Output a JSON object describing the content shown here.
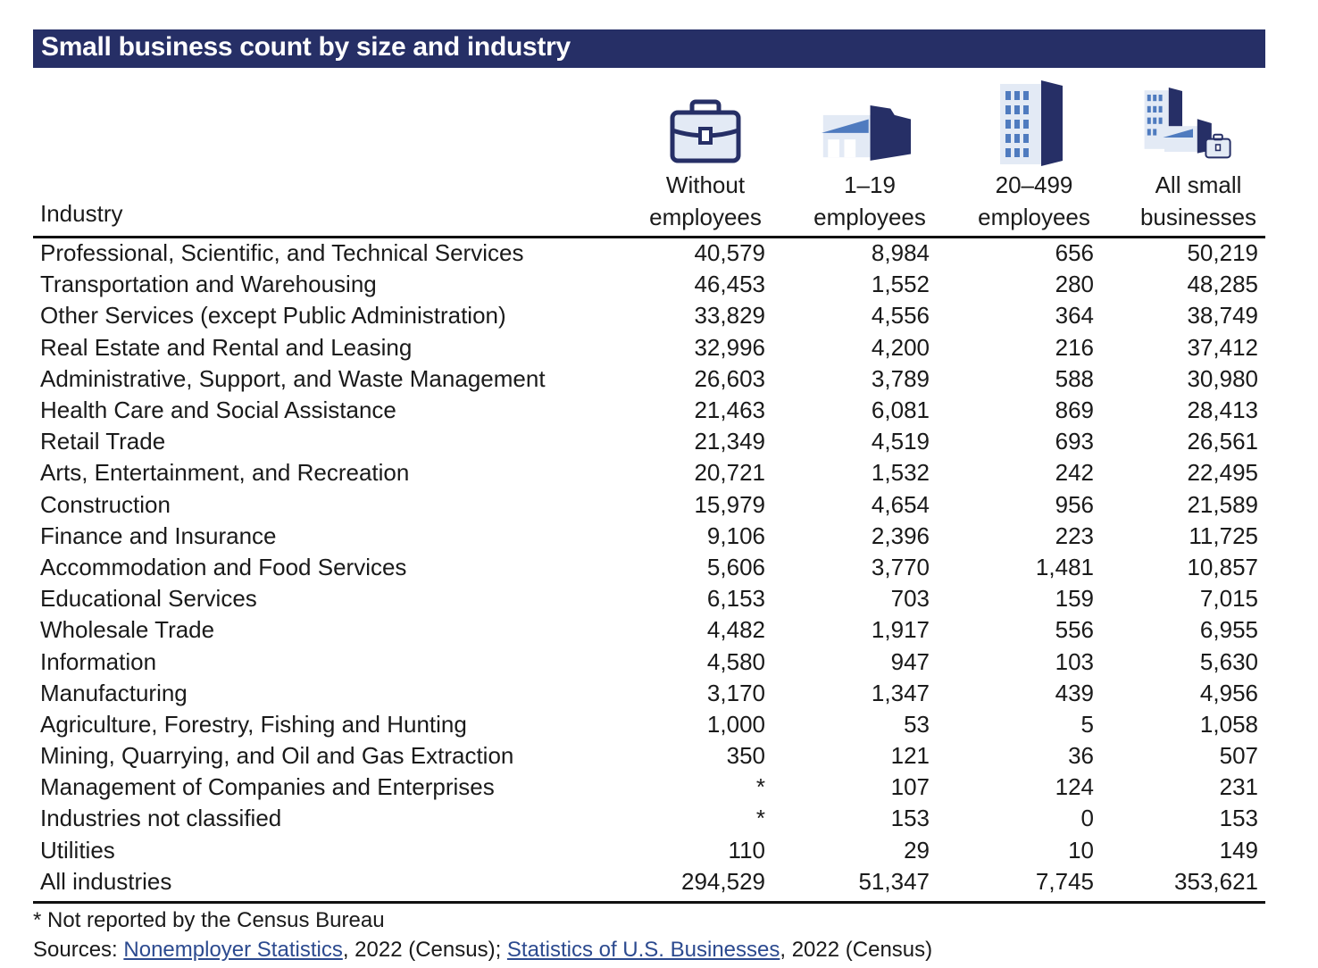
{
  "title": "Small business count by size and industry",
  "header": {
    "industry": "Industry",
    "columns": [
      {
        "line1": "Without",
        "line2": "employees",
        "icon": "briefcase-icon"
      },
      {
        "line1": "1–19",
        "line2": "employees",
        "icon": "storefront-icon"
      },
      {
        "line1": "20–499",
        "line2": "employees",
        "icon": "office-building-icon"
      },
      {
        "line1": "All small",
        "line2": "businesses",
        "icon": "buildings-group-icon"
      }
    ]
  },
  "rows": [
    [
      "Professional, Scientific, and Technical Services",
      "40,579",
      "8,984",
      "656",
      "50,219"
    ],
    [
      "Transportation and Warehousing",
      "46,453",
      "1,552",
      "280",
      "48,285"
    ],
    [
      "Other Services (except Public Administration)",
      "33,829",
      "4,556",
      "364",
      "38,749"
    ],
    [
      "Real Estate and Rental and Leasing",
      "32,996",
      "4,200",
      "216",
      "37,412"
    ],
    [
      "Administrative, Support, and Waste Management",
      "26,603",
      "3,789",
      "588",
      "30,980"
    ],
    [
      "Health Care and Social Assistance",
      "21,463",
      "6,081",
      "869",
      "28,413"
    ],
    [
      "Retail Trade",
      "21,349",
      "4,519",
      "693",
      "26,561"
    ],
    [
      "Arts, Entertainment, and Recreation",
      "20,721",
      "1,532",
      "242",
      "22,495"
    ],
    [
      "Construction",
      "15,979",
      "4,654",
      "956",
      "21,589"
    ],
    [
      "Finance and Insurance",
      "9,106",
      "2,396",
      "223",
      "11,725"
    ],
    [
      "Accommodation and Food Services",
      "5,606",
      "3,770",
      "1,481",
      "10,857"
    ],
    [
      "Educational Services",
      "6,153",
      "703",
      "159",
      "7,015"
    ],
    [
      "Wholesale Trade",
      "4,482",
      "1,917",
      "556",
      "6,955"
    ],
    [
      "Information",
      "4,580",
      "947",
      "103",
      "5,630"
    ],
    [
      "Manufacturing",
      "3,170",
      "1,347",
      "439",
      "4,956"
    ],
    [
      "Agriculture, Forestry, Fishing and Hunting",
      "1,000",
      "53",
      "5",
      "1,058"
    ],
    [
      "Mining, Quarrying, and Oil and Gas Extraction",
      "350",
      "121",
      "36",
      "507"
    ],
    [
      "Management of Companies and Enterprises",
      "*",
      "107",
      "124",
      "231"
    ],
    [
      "Industries not classified",
      "*",
      "153",
      "0",
      "153"
    ],
    [
      "Utilities",
      "110",
      "29",
      "10",
      "149"
    ],
    [
      "All industries",
      "294,529",
      "51,347",
      "7,745",
      "353,621"
    ]
  ],
  "footnote": "* Not reported by the Census Bureau",
  "sources": {
    "prefix": "Sources: ",
    "link1": "Nonemployer Statistics",
    "mid": ", 2022 (Census); ",
    "link2": "Statistics of U.S. Businesses",
    "suffix": ", 2022 (Census)"
  },
  "colors": {
    "navy": "#262f66",
    "light": "#e3eaf5",
    "mid": "#4f7bbf"
  }
}
